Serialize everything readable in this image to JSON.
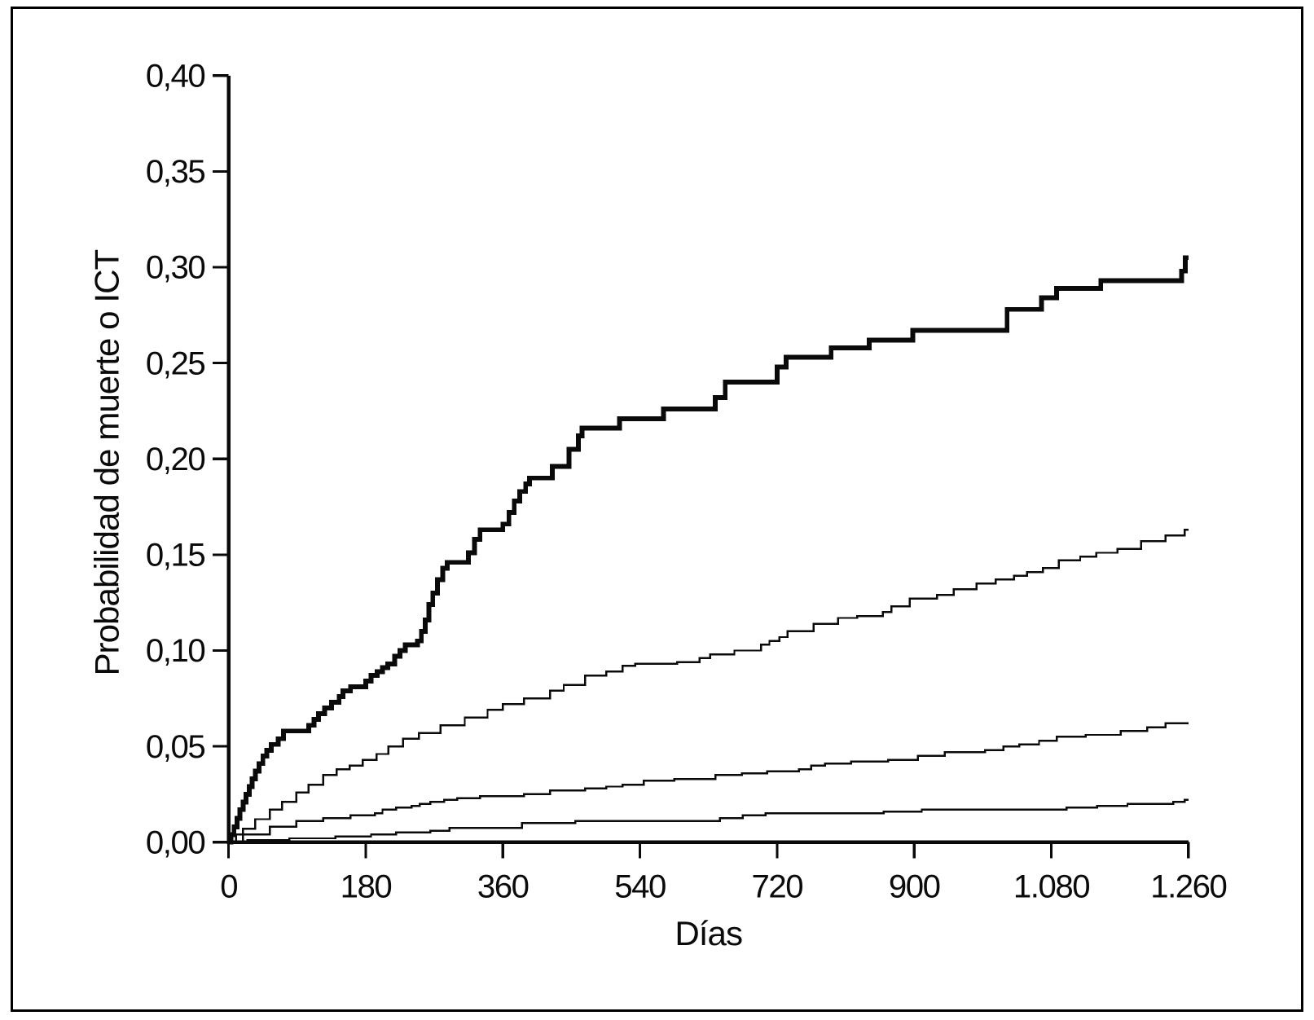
{
  "figure": {
    "background_color": "#ffffff",
    "border_color": "#000000",
    "ink_color": "#0a0a0a"
  },
  "chart_data": {
    "type": "line",
    "subtype": "step-after-cumulative-incidence",
    "title": "",
    "xlabel": "Días",
    "ylabel": "Probabilidad de muerte o ICT",
    "xlim": [
      0,
      1260
    ],
    "ylim": [
      0.0,
      0.4
    ],
    "grid": false,
    "legend_position": "none",
    "x_ticks": [
      {
        "value": 0,
        "label": "0"
      },
      {
        "value": 180,
        "label": "180"
      },
      {
        "value": 360,
        "label": "360"
      },
      {
        "value": 540,
        "label": "540"
      },
      {
        "value": 720,
        "label": "720"
      },
      {
        "value": 900,
        "label": "900"
      },
      {
        "value": 1080,
        "label": "1.080"
      },
      {
        "value": 1260,
        "label": "1.260"
      }
    ],
    "y_ticks": [
      {
        "value": 0.0,
        "label": "0,00"
      },
      {
        "value": 0.05,
        "label": "0,05"
      },
      {
        "value": 0.1,
        "label": "0,10"
      },
      {
        "value": 0.15,
        "label": "0,15"
      },
      {
        "value": 0.2,
        "label": "0,20"
      },
      {
        "value": 0.25,
        "label": "0,25"
      },
      {
        "value": 0.3,
        "label": "0,30"
      },
      {
        "value": 0.35,
        "label": "0,35"
      },
      {
        "value": 0.4,
        "label": "0,40"
      }
    ],
    "series": [
      {
        "name": "curve-1-upper-thick",
        "thick": true,
        "end_value": 0.305,
        "points": [
          [
            0,
            0
          ],
          [
            3,
            0.004
          ],
          [
            7,
            0.008
          ],
          [
            11,
            0.0125
          ],
          [
            15,
            0.017
          ],
          [
            19,
            0.021
          ],
          [
            23,
            0.025
          ],
          [
            27,
            0.029
          ],
          [
            31,
            0.033
          ],
          [
            35,
            0.037
          ],
          [
            40,
            0.041
          ],
          [
            45,
            0.045
          ],
          [
            50,
            0.048
          ],
          [
            56,
            0.051
          ],
          [
            65,
            0.054
          ],
          [
            72,
            0.058
          ],
          [
            105,
            0.061
          ],
          [
            112,
            0.064
          ],
          [
            118,
            0.067
          ],
          [
            126,
            0.07
          ],
          [
            135,
            0.073
          ],
          [
            145,
            0.076
          ],
          [
            150,
            0.079
          ],
          [
            160,
            0.081
          ],
          [
            180,
            0.084
          ],
          [
            187,
            0.087
          ],
          [
            195,
            0.089
          ],
          [
            202,
            0.091
          ],
          [
            209,
            0.093
          ],
          [
            218,
            0.097
          ],
          [
            225,
            0.1
          ],
          [
            232,
            0.103
          ],
          [
            248,
            0.105
          ],
          [
            253,
            0.11
          ],
          [
            258,
            0.116
          ],
          [
            263,
            0.124
          ],
          [
            268,
            0.13
          ],
          [
            274,
            0.137
          ],
          [
            281,
            0.143
          ],
          [
            287,
            0.146
          ],
          [
            315,
            0.151
          ],
          [
            323,
            0.158
          ],
          [
            330,
            0.163
          ],
          [
            360,
            0.166
          ],
          [
            368,
            0.172
          ],
          [
            375,
            0.178
          ],
          [
            382,
            0.183
          ],
          [
            390,
            0.187
          ],
          [
            395,
            0.19
          ],
          [
            425,
            0.196
          ],
          [
            447,
            0.205
          ],
          [
            459,
            0.212
          ],
          [
            464,
            0.216
          ],
          [
            513,
            0.221
          ],
          [
            571,
            0.226
          ],
          [
            639,
            0.232
          ],
          [
            652,
            0.24
          ],
          [
            720,
            0.248
          ],
          [
            732,
            0.253
          ],
          [
            791,
            0.258
          ],
          [
            841,
            0.262
          ],
          [
            898,
            0.267
          ],
          [
            1022,
            0.278
          ],
          [
            1067,
            0.284
          ],
          [
            1087,
            0.289
          ],
          [
            1145,
            0.293
          ],
          [
            1251,
            0.298
          ],
          [
            1256,
            0.305
          ],
          [
            1260,
            0.305
          ]
        ]
      },
      {
        "name": "curve-2-second",
        "thick": false,
        "end_value": 0.163,
        "points": [
          [
            0,
            0
          ],
          [
            10,
            0.004
          ],
          [
            19,
            0.007
          ],
          [
            35,
            0.012
          ],
          [
            54,
            0.017
          ],
          [
            70,
            0.021
          ],
          [
            89,
            0.026
          ],
          [
            105,
            0.03
          ],
          [
            124,
            0.035
          ],
          [
            142,
            0.038
          ],
          [
            159,
            0.04
          ],
          [
            176,
            0.043
          ],
          [
            194,
            0.046
          ],
          [
            210,
            0.05
          ],
          [
            229,
            0.054
          ],
          [
            250,
            0.057
          ],
          [
            278,
            0.061
          ],
          [
            310,
            0.065
          ],
          [
            340,
            0.069
          ],
          [
            360,
            0.072
          ],
          [
            388,
            0.075
          ],
          [
            422,
            0.079
          ],
          [
            440,
            0.082
          ],
          [
            468,
            0.087
          ],
          [
            496,
            0.089
          ],
          [
            517,
            0.092
          ],
          [
            534,
            0.093
          ],
          [
            589,
            0.094
          ],
          [
            618,
            0.096
          ],
          [
            632,
            0.098
          ],
          [
            664,
            0.1
          ],
          [
            699,
            0.103
          ],
          [
            710,
            0.105
          ],
          [
            723,
            0.107
          ],
          [
            734,
            0.11
          ],
          [
            768,
            0.114
          ],
          [
            800,
            0.117
          ],
          [
            825,
            0.118
          ],
          [
            859,
            0.12
          ],
          [
            870,
            0.123
          ],
          [
            894,
            0.127
          ],
          [
            930,
            0.129
          ],
          [
            952,
            0.132
          ],
          [
            982,
            0.135
          ],
          [
            1007,
            0.137
          ],
          [
            1031,
            0.139
          ],
          [
            1048,
            0.141
          ],
          [
            1069,
            0.143
          ],
          [
            1090,
            0.147
          ],
          [
            1118,
            0.149
          ],
          [
            1139,
            0.151
          ],
          [
            1167,
            0.153
          ],
          [
            1198,
            0.157
          ],
          [
            1230,
            0.16
          ],
          [
            1255,
            0.163
          ],
          [
            1260,
            0.163
          ]
        ]
      },
      {
        "name": "curve-3-third",
        "thick": false,
        "end_value": 0.062,
        "points": [
          [
            0,
            0
          ],
          [
            19,
            0.004
          ],
          [
            54,
            0.008
          ],
          [
            89,
            0.011
          ],
          [
            124,
            0.0125
          ],
          [
            160,
            0.014
          ],
          [
            192,
            0.015
          ],
          [
            202,
            0.017
          ],
          [
            220,
            0.018
          ],
          [
            240,
            0.019
          ],
          [
            251,
            0.02
          ],
          [
            265,
            0.021
          ],
          [
            283,
            0.022
          ],
          [
            300,
            0.023
          ],
          [
            330,
            0.024
          ],
          [
            388,
            0.025
          ],
          [
            422,
            0.027
          ],
          [
            468,
            0.028
          ],
          [
            496,
            0.029
          ],
          [
            517,
            0.03
          ],
          [
            545,
            0.032
          ],
          [
            585,
            0.033
          ],
          [
            639,
            0.035
          ],
          [
            674,
            0.036
          ],
          [
            707,
            0.037
          ],
          [
            749,
            0.038
          ],
          [
            765,
            0.04
          ],
          [
            783,
            0.041
          ],
          [
            817,
            0.042
          ],
          [
            866,
            0.043
          ],
          [
            905,
            0.045
          ],
          [
            940,
            0.047
          ],
          [
            993,
            0.048
          ],
          [
            1017,
            0.05
          ],
          [
            1038,
            0.051
          ],
          [
            1064,
            0.053
          ],
          [
            1087,
            0.055
          ],
          [
            1125,
            0.056
          ],
          [
            1171,
            0.058
          ],
          [
            1206,
            0.06
          ],
          [
            1230,
            0.062
          ],
          [
            1260,
            0.062
          ]
        ]
      },
      {
        "name": "curve-4-lowest",
        "thick": false,
        "end_value": 0.022,
        "points": [
          [
            0,
            0
          ],
          [
            25,
            0.001
          ],
          [
            80,
            0.002
          ],
          [
            140,
            0.003
          ],
          [
            187,
            0.004
          ],
          [
            220,
            0.005
          ],
          [
            265,
            0.006
          ],
          [
            290,
            0.0075
          ],
          [
            385,
            0.01
          ],
          [
            455,
            0.011
          ],
          [
            645,
            0.0125
          ],
          [
            675,
            0.014
          ],
          [
            705,
            0.015
          ],
          [
            860,
            0.016
          ],
          [
            910,
            0.017
          ],
          [
            1100,
            0.018
          ],
          [
            1140,
            0.019
          ],
          [
            1180,
            0.02
          ],
          [
            1240,
            0.021
          ],
          [
            1255,
            0.022
          ],
          [
            1260,
            0.022
          ]
        ]
      }
    ]
  }
}
